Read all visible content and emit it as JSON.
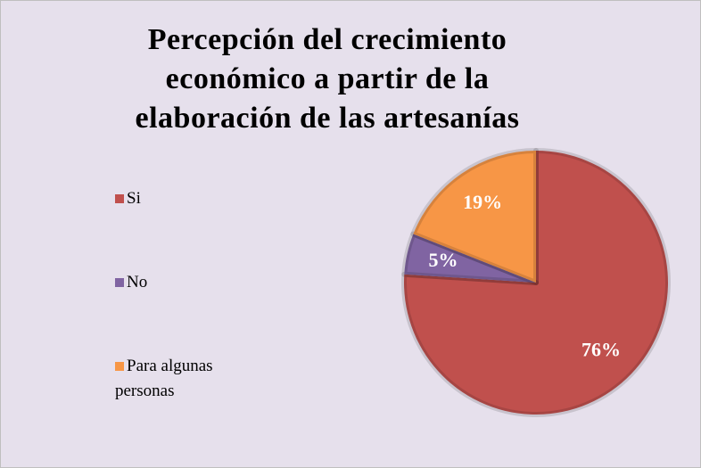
{
  "chart_data": {
    "type": "pie",
    "title": "Percepción del crecimiento económico a partir de la elaboración de las artesanías",
    "categories": [
      "Si",
      "No",
      "Para algunas personas"
    ],
    "values": [
      76,
      5,
      19
    ],
    "value_labels": [
      "76%",
      "5%",
      "19%"
    ],
    "colors": [
      "#c0504d",
      "#8064a2",
      "#f79646"
    ],
    "legend": "left"
  }
}
